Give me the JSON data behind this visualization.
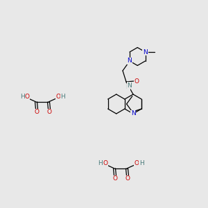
{
  "bg_color": "#e8e8e8",
  "colors": {
    "N": "#0000cc",
    "O": "#cc0000",
    "H": "#4a7a7a",
    "bond": "#000000",
    "bg": "#e8e8e8"
  },
  "lw": 0.9,
  "fs": 6.5
}
